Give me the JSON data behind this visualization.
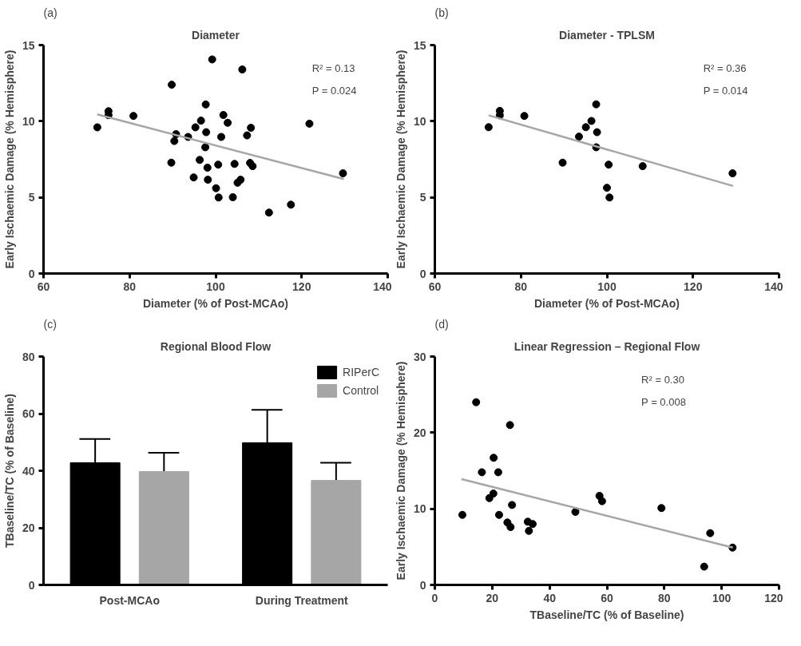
{
  "chart_data": [
    {
      "type": "scatter",
      "title": "Diameter",
      "xlabel": "Diameter (% of Post-MCAo)",
      "ylabel": "Early Ischaemic Damage (% Hemisphere)",
      "annotations": [
        "(a)",
        "R² = 0.13",
        "P = 0.024"
      ],
      "xlim": [
        60,
        140
      ],
      "xticks": [
        60,
        80,
        100,
        120,
        140
      ],
      "ylim": [
        0,
        15
      ],
      "yticks": [
        0,
        5,
        10,
        15
      ],
      "series": [
        {
          "marker": "circle",
          "color": "#000000",
          "x": [
            72.5,
            75.1,
            75.1,
            80.9,
            89.8,
            90.8,
            90.4,
            89.7,
            93.6,
            94.9,
            95.3,
            96.6,
            97.7,
            97.8,
            97.6,
            96.3,
            98.1,
            98.2,
            99.2,
            100.1,
            100.7,
            100.6,
            101.3,
            101.8,
            102.8,
            104.0,
            104.4,
            105.1,
            105.8,
            106.2,
            107.3,
            108.2,
            108.0,
            108.6,
            112.4,
            117.5,
            121.8,
            129.6
          ],
          "values": [
            9.6,
            10.66,
            10.4,
            10.35,
            12.4,
            9.15,
            8.7,
            7.28,
            8.97,
            6.31,
            9.6,
            10.04,
            11.1,
            9.28,
            8.29,
            7.46,
            6.95,
            6.16,
            14.06,
            5.6,
            4.99,
            7.15,
            8.97,
            10.41,
            9.9,
            5.01,
            7.2,
            5.96,
            6.16,
            13.4,
            9.07,
            9.57,
            7.26,
            7.05,
            4.0,
            4.52,
            9.84,
            6.58
          ]
        },
        {
          "type": "line",
          "color": "#a6a6a6",
          "x": [
            72.5,
            129.8
          ],
          "values": [
            10.45,
            6.2
          ]
        }
      ]
    },
    {
      "type": "scatter",
      "title": "Diameter - TPLSM",
      "xlabel": "Diameter (% of Post-MCAo)",
      "ylabel": "Early Ischaemic Damage (% Hemisphere)",
      "annotations": [
        "(b)",
        "R² = 0.36",
        "P = 0.014"
      ],
      "xlim": [
        60,
        140
      ],
      "xticks": [
        60,
        80,
        100,
        120,
        140
      ],
      "ylim": [
        0,
        15
      ],
      "yticks": [
        0,
        5,
        10,
        15
      ],
      "series": [
        {
          "marker": "circle",
          "color": "#000000",
          "x": [
            72.5,
            75.1,
            75.1,
            80.8,
            89.7,
            93.5,
            95.1,
            96.4,
            97.5,
            97.7,
            97.5,
            100.4,
            100.0,
            100.6,
            108.3,
            129.2
          ],
          "values": [
            9.61,
            10.68,
            10.39,
            10.35,
            7.28,
            8.99,
            9.61,
            10.02,
            11.11,
            9.28,
            8.29,
            7.15,
            5.63,
            4.99,
            7.05,
            6.58
          ]
        },
        {
          "type": "line",
          "color": "#a6a6a6",
          "x": [
            72.5,
            129.3
          ],
          "values": [
            10.39,
            5.75
          ]
        }
      ]
    },
    {
      "type": "bar",
      "title": "Regional Blood Flow",
      "ylabel": "TBaseline/TC (% of Baseline)",
      "annotations": [
        "(c)"
      ],
      "categories": [
        "Post-MCAo",
        "During Treatment"
      ],
      "ylim": [
        0,
        80
      ],
      "yticks": [
        0,
        20,
        40,
        60,
        80
      ],
      "legend": "top right",
      "series": [
        {
          "name": "RIPerC",
          "color": "#000000",
          "values": [
            42.8,
            49.8
          ],
          "errors": [
            8.3,
            11.5
          ]
        },
        {
          "name": "Control",
          "color": "#a6a6a6",
          "values": [
            39.7,
            36.6
          ],
          "errors": [
            6.6,
            6.2
          ]
        }
      ]
    },
    {
      "type": "scatter",
      "title": "Linear Regression – Regional Flow",
      "xlabel": "TBaseline/TC (% of Baseline)",
      "ylabel": "Early Ischaemic Damage (% Hemisphere)",
      "annotations": [
        "(d)",
        "R² = 0.30",
        "P = 0.008"
      ],
      "xlim": [
        0,
        120
      ],
      "xticks": [
        0,
        20,
        40,
        60,
        80,
        100,
        120
      ],
      "ylim": [
        0,
        30
      ],
      "yticks": [
        0,
        10,
        20,
        30
      ],
      "series": [
        {
          "marker": "circle",
          "color": "#000000",
          "x": [
            9.6,
            14.4,
            16.4,
            20.5,
            22.1,
            19.0,
            20.4,
            22.4,
            26.2,
            26.9,
            25.3,
            26.4,
            32.4,
            34.1,
            32.8,
            49.0,
            57.4,
            58.3,
            79.0,
            93.9,
            96.0,
            103.8
          ],
          "values": [
            9.2,
            24.0,
            14.8,
            16.7,
            14.8,
            11.4,
            12.0,
            9.2,
            21.0,
            10.5,
            8.2,
            7.6,
            8.3,
            8.0,
            7.1,
            9.6,
            11.7,
            11.0,
            10.1,
            2.4,
            6.8,
            4.9
          ]
        },
        {
          "type": "line",
          "color": "#a6a6a6",
          "x": [
            9.3,
            103.9
          ],
          "values": [
            13.9,
            4.9
          ]
        }
      ]
    }
  ]
}
